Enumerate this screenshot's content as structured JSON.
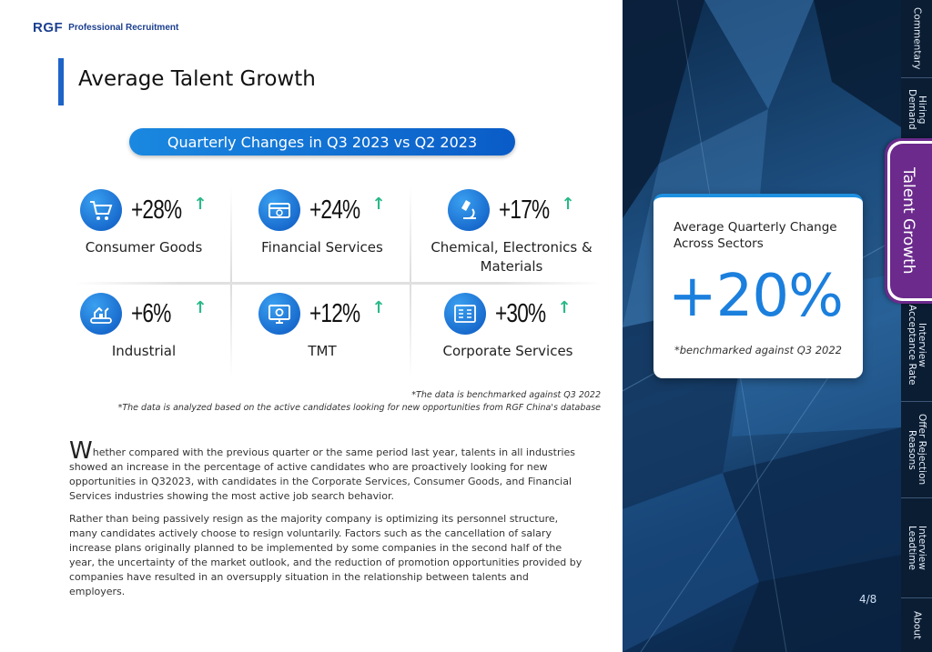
{
  "brand": {
    "mark": "RGF",
    "tagline": "Professional Recruitment"
  },
  "page_title": "Average Talent Growth",
  "pill_heading": "Quarterly Changes in Q3 2023 vs Q2 2023",
  "sectors": [
    {
      "value": "+28%",
      "label": "Consumer Goods",
      "icon": "shopping-cart-icon"
    },
    {
      "value": "+24%",
      "label": "Financial Services",
      "icon": "credit-card-icon"
    },
    {
      "value": "+17%",
      "label": "Chemical, Electronics & Materials",
      "icon": "microscope-icon"
    },
    {
      "value": "+6%",
      "label": "Industrial",
      "icon": "factory-robot-icon"
    },
    {
      "value": "+12%",
      "label": "TMT",
      "icon": "monitor-gear-icon"
    },
    {
      "value": "+30%",
      "label": "Corporate Services",
      "icon": "documents-icon"
    }
  ],
  "trend_arrow": "↑",
  "notes": [
    "*The data is benchmarked against Q3 2022",
    "*The data is analyzed based on the active candidates looking for new opportunities  from RGF China's database"
  ],
  "body": {
    "dropcap": "W",
    "p1_rest": "hether compared with the previous quarter or the same period last year, talents in all industries showed an increase in the percentage of active candidates who are proactively looking for new opportunities in Q32023, with candidates in the Corporate Services, Consumer Goods, and Financial Services industries showing the most active job search behavior.",
    "p2": "Rather than being passively resign as the majority company is optimizing its personnel structure, many candidates actively choose to resign voluntarily. Factors such as the cancellation of salary increase plans originally planned to be implemented by some companies in the second half of the year, the uncertainty of the market outlook, and the reduction of promotion opportunities provided by companies have resulted in an oversupply situation in the relationship between talents and employers."
  },
  "stat_card": {
    "heading": "Average Quarterly Change Across Sectors",
    "value": "+20%",
    "footnote": "*benchmarked against Q3 2022"
  },
  "page_number": "4/8",
  "tabs": [
    {
      "label": "Commentary"
    },
    {
      "label": "Hiring\nDemand"
    },
    {
      "label": "Interview\nAcceptance Rate"
    },
    {
      "label": "Offer Rejection\nReasons"
    },
    {
      "label": "Interview\nLeadtime"
    },
    {
      "label": "About"
    }
  ],
  "active_tab": "Talent Growth",
  "colors": {
    "accent": "#1e63c8",
    "pill": "#0a5cc7",
    "arrow": "#2ab88a",
    "active_tab": "#6b2a8c",
    "big_stat": "#1b7fdd"
  }
}
